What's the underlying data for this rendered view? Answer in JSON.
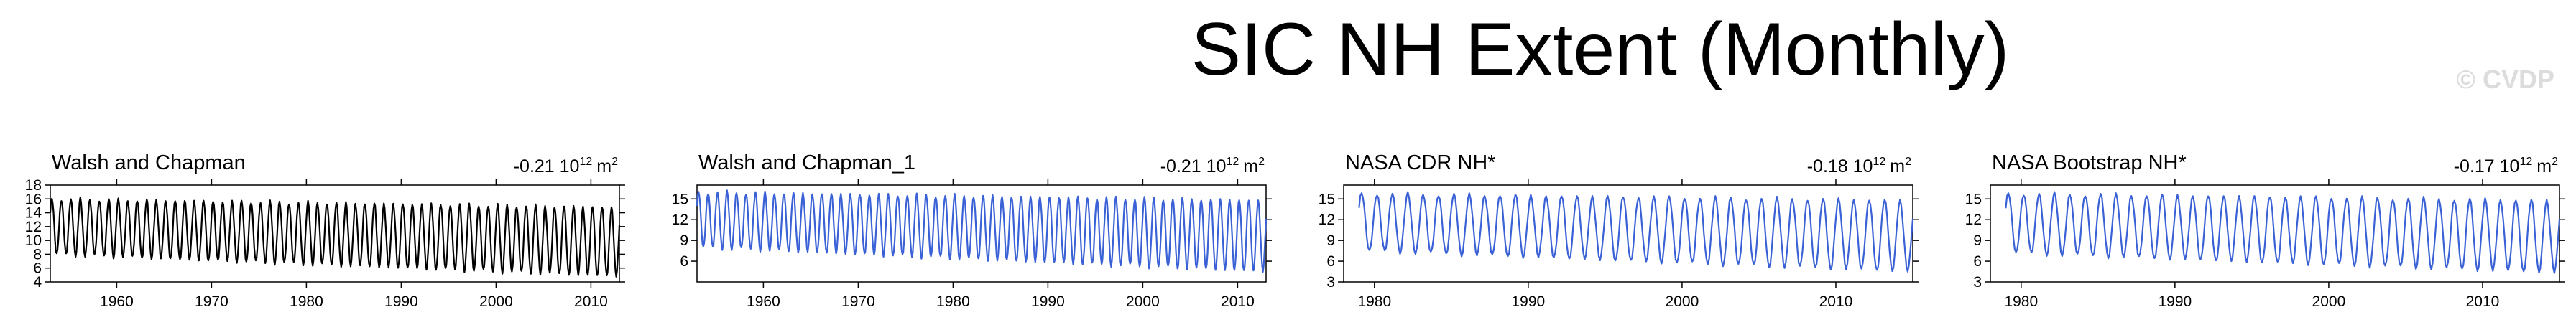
{
  "page": {
    "title": "SIC NH Extent (Monthly)",
    "watermark": "© CVDP"
  },
  "colors": {
    "black_series": "#000000",
    "blue_series": "#3a62d6"
  },
  "chart_data": [
    {
      "type": "line",
      "title": "Walsh and Chapman",
      "trend": "-0.21",
      "trend_unit": "10",
      "trend_exp": "12",
      "trend_m": "m",
      "trend_m_exp": "2",
      "color": "#000000",
      "x_start": 1953,
      "x_end": 2013,
      "xlim": [
        1953,
        2013
      ],
      "ylim": [
        4,
        18
      ],
      "yticks": [
        "4",
        "6",
        "8",
        "10",
        "12",
        "14",
        "16",
        "18"
      ],
      "ytick_values": [
        4,
        6,
        8,
        10,
        12,
        14,
        16,
        18
      ],
      "xticks": [
        "1960",
        "1970",
        "1980",
        "1990",
        "2000",
        "2010"
      ],
      "xtick_values": [
        1960,
        1970,
        1980,
        1990,
        2000,
        2010
      ],
      "cycle_max_start": 16.0,
      "cycle_max_end": 14.8,
      "cycle_min_start": 8.0,
      "cycle_min_end": 4.8
    },
    {
      "type": "line",
      "title": "Walsh and Chapman_1",
      "trend": "-0.21",
      "trend_unit": "10",
      "trend_exp": "12",
      "trend_m": "m",
      "trend_m_exp": "2",
      "color": "#3a62d6",
      "x_start": 1953,
      "x_end": 2013,
      "xlim": [
        1953,
        2013
      ],
      "ylim": [
        3,
        17
      ],
      "yticks": [
        "6",
        "9",
        "12",
        "15"
      ],
      "ytick_values": [
        6,
        9,
        12,
        15
      ],
      "xticks": [
        "1960",
        "1970",
        "1980",
        "1990",
        "2000",
        "2010"
      ],
      "xtick_values": [
        1960,
        1970,
        1980,
        1990,
        2000,
        2010
      ],
      "cycle_max_start": 16.0,
      "cycle_max_end": 14.8,
      "cycle_min_start": 8.0,
      "cycle_min_end": 4.5
    },
    {
      "type": "line",
      "title": "NASA CDR NH*",
      "trend": "-0.18",
      "trend_unit": "10",
      "trend_exp": "12",
      "trend_m": "m",
      "trend_m_exp": "2",
      "color": "#3a62d6",
      "x_start": 1979,
      "x_end": 2015,
      "xlim": [
        1978,
        2015
      ],
      "ylim": [
        3,
        17
      ],
      "yticks": [
        "3",
        "6",
        "9",
        "12",
        "15"
      ],
      "ytick_values": [
        3,
        6,
        9,
        12,
        15
      ],
      "xticks": [
        "1980",
        "1990",
        "2000",
        "2010"
      ],
      "xtick_values": [
        1980,
        1990,
        2000,
        2010
      ],
      "cycle_max_start": 15.8,
      "cycle_max_end": 14.8,
      "cycle_min_start": 7.5,
      "cycle_min_end": 4.5
    },
    {
      "type": "line",
      "title": "NASA Bootstrap NH*",
      "trend": "-0.17",
      "trend_unit": "10",
      "trend_exp": "12",
      "trend_m": "m",
      "trend_m_exp": "2",
      "color": "#3a62d6",
      "x_start": 1979,
      "x_end": 2015,
      "xlim": [
        1978,
        2015
      ],
      "ylim": [
        3,
        17
      ],
      "yticks": [
        "3",
        "6",
        "9",
        "12",
        "15"
      ],
      "ytick_values": [
        3,
        6,
        9,
        12,
        15
      ],
      "xticks": [
        "1980",
        "1990",
        "2000",
        "2010"
      ],
      "xtick_values": [
        1980,
        1990,
        2000,
        2010
      ],
      "cycle_max_start": 15.8,
      "cycle_max_end": 14.8,
      "cycle_min_start": 7.2,
      "cycle_min_end": 4.3
    }
  ]
}
